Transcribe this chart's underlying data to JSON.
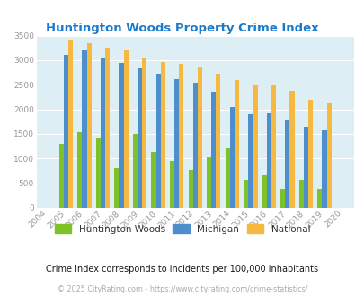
{
  "title": "Huntington Woods Property Crime Index",
  "years": [
    "2004",
    "2005",
    "2006",
    "2007",
    "2008",
    "2009",
    "2010",
    "2011",
    "2012",
    "2013",
    "2014",
    "2015",
    "2016",
    "2017",
    "2018",
    "2019",
    "2020"
  ],
  "huntington_woods": [
    0,
    1300,
    1530,
    1430,
    800,
    1500,
    1130,
    950,
    760,
    1040,
    1200,
    575,
    670,
    380,
    570,
    380,
    0
  ],
  "michigan": [
    0,
    3100,
    3200,
    3050,
    2940,
    2830,
    2720,
    2620,
    2540,
    2360,
    2050,
    1900,
    1920,
    1800,
    1640,
    1570,
    0
  ],
  "national": [
    0,
    3420,
    3340,
    3260,
    3200,
    3050,
    2960,
    2920,
    2870,
    2730,
    2600,
    2500,
    2480,
    2380,
    2200,
    2120,
    0
  ],
  "bar_width": 0.25,
  "color_hw": "#7dc228",
  "color_mi": "#4d8fcc",
  "color_na": "#f5b942",
  "bg_color": "#ddeef5",
  "ylim": [
    0,
    3500
  ],
  "yticks": [
    0,
    500,
    1000,
    1500,
    2000,
    2500,
    3000,
    3500
  ],
  "legend_labels": [
    "Huntington Woods",
    "Michigan",
    "National"
  ],
  "subtitle": "Crime Index corresponds to incidents per 100,000 inhabitants",
  "footer": "© 2025 CityRating.com - https://www.cityrating.com/crime-statistics/",
  "title_color": "#1a7acc",
  "subtitle_color": "#1a1a1a",
  "footer_color": "#aaaaaa",
  "legend_label_color": "#333333",
  "tick_color": "#999999"
}
